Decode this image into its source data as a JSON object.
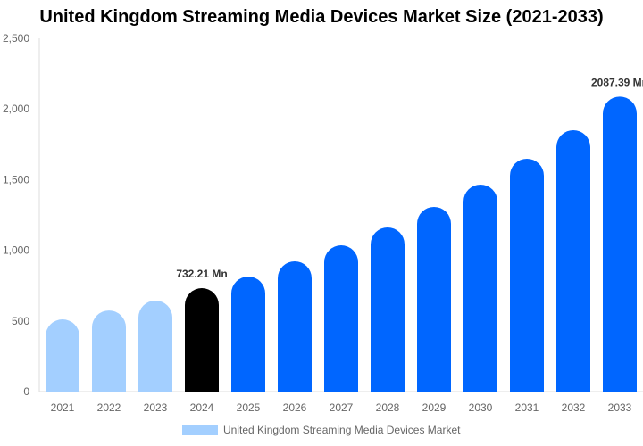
{
  "chart_data": {
    "type": "bar",
    "title": "United Kingdom Streaming Media Devices Market Size (2021-2033)",
    "categories": [
      "2021",
      "2022",
      "2023",
      "2024",
      "2025",
      "2026",
      "2027",
      "2028",
      "2029",
      "2030",
      "2031",
      "2032",
      "2033"
    ],
    "series": [
      {
        "name": "United Kingdom Streaming Media Devices Market",
        "values": [
          511,
          574,
          644,
          732.21,
          814,
          922,
          1035,
          1162,
          1307,
          1465,
          1648,
          1850,
          2087.39
        ]
      }
    ],
    "data_labels": {
      "3": "732.21 Mn",
      "12": "2087.39 Mn"
    },
    "ylim": [
      0,
      2500
    ],
    "yticks": [
      "0",
      "500",
      "1,000",
      "1,500",
      "2,000",
      "2,500"
    ],
    "ytick_values": [
      0,
      500,
      1000,
      1500,
      2000,
      2500
    ],
    "grid": false,
    "legend_position": "bottom",
    "colors": {
      "historical": "#a3cfff",
      "base_year": "#000000",
      "forecast": "#0066ff"
    }
  }
}
